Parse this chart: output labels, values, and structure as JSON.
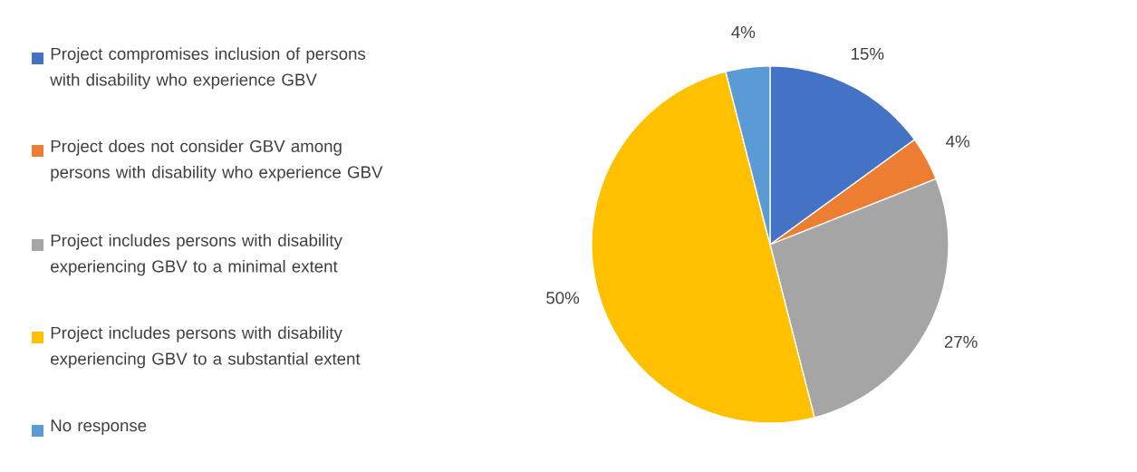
{
  "chart_data": {
    "type": "pie",
    "categories": [
      "Project compromises inclusion of persons with disability who experience GBV",
      "Project does not consider GBV among persons with disability who experience GBV",
      "Project includes persons with disability experiencing GBV to a minimal extent",
      "Project includes persons with disability experiencing GBV to a substantial extent",
      "No response"
    ],
    "values": [
      15,
      4,
      27,
      50,
      4
    ],
    "value_labels": [
      "15%",
      "4%",
      "27%",
      "50%",
      "4%"
    ],
    "colors": [
      "#4472c4",
      "#ed7d31",
      "#a5a5a5",
      "#ffc000",
      "#5b9bd5"
    ],
    "legend": "left"
  }
}
